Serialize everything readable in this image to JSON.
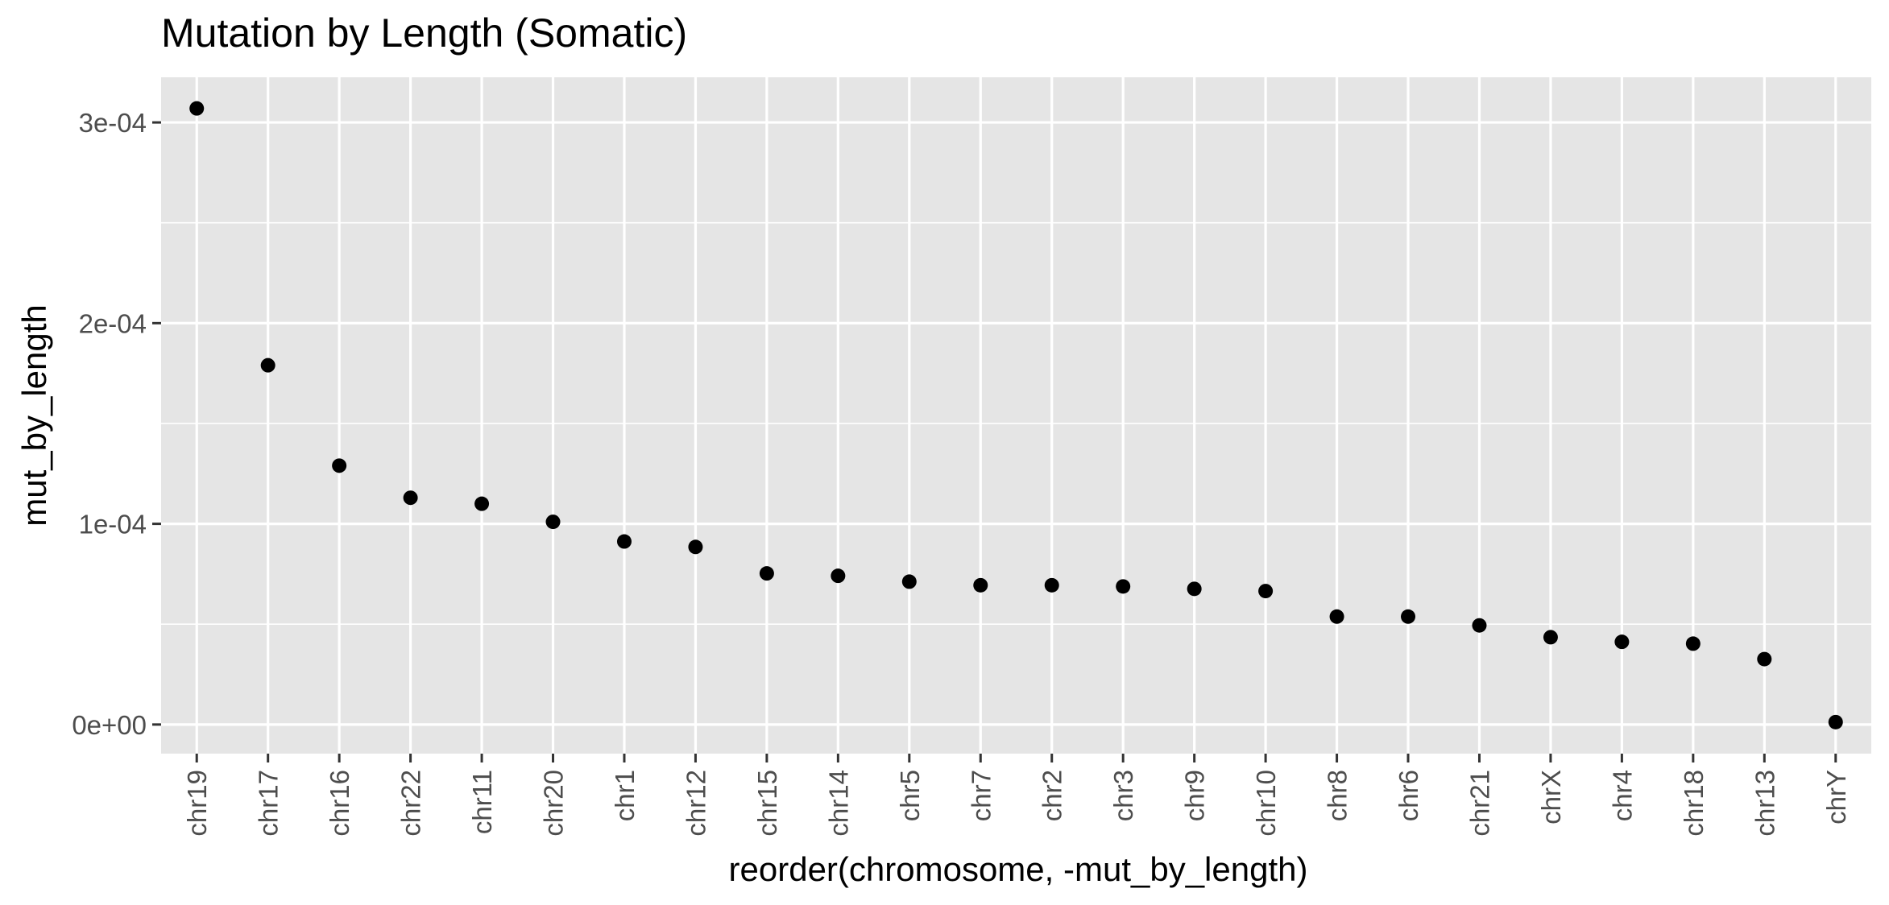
{
  "chart_data": {
    "type": "scatter",
    "title": "Mutation by Length (Somatic)",
    "xlabel": "reorder(chromosome, -mut_by_length)",
    "ylabel": "mut_by_length",
    "categories": [
      "chr19",
      "chr17",
      "chr16",
      "chr22",
      "chr11",
      "chr20",
      "chr1",
      "chr12",
      "chr15",
      "chr14",
      "chr5",
      "chr7",
      "chr2",
      "chr3",
      "chr9",
      "chr10",
      "chr8",
      "chr6",
      "chr21",
      "chrX",
      "chr4",
      "chr18",
      "chr13",
      "chrY"
    ],
    "values": [
      0.000307,
      0.000179,
      0.000129,
      0.000113,
      0.00011,
      0.000101,
      9.12e-05,
      8.85e-05,
      7.53e-05,
      7.41e-05,
      7.12e-05,
      6.94e-05,
      6.94e-05,
      6.88e-05,
      6.76e-05,
      6.65e-05,
      5.38e-05,
      5.38e-05,
      4.94e-05,
      4.35e-05,
      4.12e-05,
      4.03e-05,
      3.26e-05,
      1.2e-06
    ],
    "yticks": [
      0,
      0.0001,
      0.0002,
      0.0003
    ],
    "ytick_labels": [
      "0e+00",
      "1e-04",
      "2e-04",
      "3e-04"
    ],
    "ylim": [
      -1.45e-05,
      0.0003225
    ],
    "grid": true,
    "colors": {
      "panel": "#e5e5e5",
      "grid": "#ffffff",
      "point": "#000000"
    }
  }
}
